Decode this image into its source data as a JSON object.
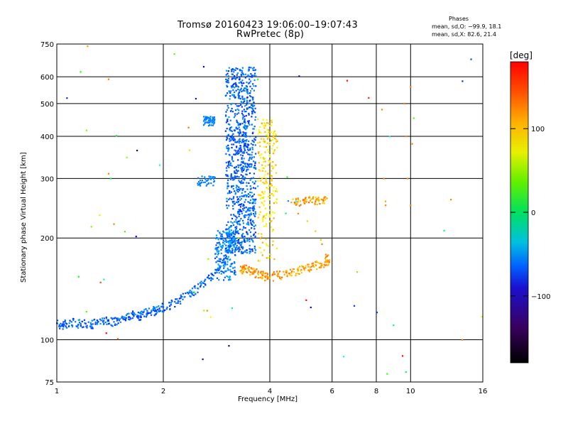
{
  "header": {
    "title": "Tromsø 20160423 19:06:00–19:07:43",
    "subtitle": "RwPretec (8p)"
  },
  "phases": {
    "heading": "Phases",
    "line_o": "mean, sd,O: −99.9, 18.1",
    "line_x": "mean, sd,X:  82.6, 21.4"
  },
  "colorbar": {
    "unit": "[deg]",
    "range": [
      -180,
      180
    ],
    "ticks": [
      {
        "v": 100,
        "label": "100"
      },
      {
        "v": 0,
        "label": "0"
      },
      {
        "v": -100,
        "label": "−100"
      }
    ]
  },
  "colors": {
    "o_mode": "#2a1ae0",
    "x_mode": "#d8e020",
    "noise": "#ff8a1e"
  },
  "chart_data": {
    "type": "scatter",
    "title": "Tromsø 20160423 19:06:00–19:07:43",
    "subtitle": "RwPretec (8p)",
    "xlabel": "Frequency [MHz]",
    "ylabel": "Stationary phase Virtual Height [km]",
    "x_scale": "log",
    "y_scale": "log",
    "xlim": [
      1,
      16
    ],
    "ylim": [
      75,
      750
    ],
    "x_ticks": [
      {
        "v": 1,
        "label": "1"
      },
      {
        "v": 2,
        "label": "2"
      },
      {
        "v": 4,
        "label": "4"
      },
      {
        "v": 6,
        "label": "6"
      },
      {
        "v": 8,
        "label": "8"
      },
      {
        "v": 10,
        "label": "10"
      },
      {
        "v": 16,
        "label": "16"
      }
    ],
    "y_ticks": [
      {
        "v": 75,
        "label": "75"
      },
      {
        "v": 100,
        "label": "100"
      },
      {
        "v": 200,
        "label": "200"
      },
      {
        "v": 300,
        "label": "300"
      },
      {
        "v": 400,
        "label": "400"
      },
      {
        "v": 500,
        "label": "500"
      },
      {
        "v": 600,
        "label": "600"
      },
      {
        "v": 750,
        "label": "750"
      }
    ],
    "grid": true,
    "color_by": "phase [deg]",
    "series": [
      {
        "points": [
          [
            1.0,
            112,
            -110
          ],
          [
            1.03,
            110,
            -110
          ],
          [
            1.06,
            112,
            -110
          ],
          [
            1.1,
            113,
            -110
          ],
          [
            1.15,
            111,
            -110
          ],
          [
            1.2,
            112,
            -110
          ],
          [
            1.25,
            111,
            -110
          ],
          [
            1.3,
            112,
            -110
          ],
          [
            1.35,
            113,
            -110
          ],
          [
            1.4,
            114,
            -110
          ],
          [
            1.45,
            113,
            -110
          ],
          [
            1.5,
            114,
            -110
          ],
          [
            1.55,
            115,
            -110
          ],
          [
            1.6,
            117,
            -110
          ],
          [
            1.65,
            118,
            -110
          ],
          [
            1.7,
            117,
            -110
          ],
          [
            1.75,
            119,
            -110
          ],
          [
            1.8,
            120,
            -110
          ],
          [
            1.85,
            121,
            -110
          ],
          [
            1.9,
            122,
            -110
          ],
          [
            1.95,
            124,
            -110
          ],
          [
            2.0,
            125,
            -110
          ],
          [
            2.1,
            127,
            -110
          ],
          [
            2.2,
            130,
            -110
          ],
          [
            2.3,
            134,
            -110
          ],
          [
            2.4,
            138,
            -110
          ],
          [
            2.5,
            142,
            -110
          ],
          [
            2.6,
            147,
            -110
          ],
          [
            2.7,
            152,
            -110
          ],
          [
            2.8,
            158,
            -110
          ],
          [
            2.9,
            165,
            -110
          ],
          [
            3.0,
            175,
            -110
          ],
          [
            3.1,
            190,
            -110
          ],
          [
            3.2,
            210,
            -110
          ],
          [
            3.3,
            240,
            -110
          ],
          [
            3.35,
            300,
            -110
          ],
          [
            3.4,
            400,
            -110
          ],
          [
            3.45,
            520,
            -110
          ],
          [
            3.5,
            640,
            -110
          ]
        ]
      },
      {
        "points": [
          [
            3.3,
            160,
            130
          ],
          [
            3.35,
            162,
            130
          ],
          [
            3.4,
            163,
            130
          ],
          [
            3.5,
            160,
            130
          ],
          [
            3.6,
            158,
            130
          ],
          [
            3.7,
            157,
            130
          ],
          [
            3.8,
            156,
            130
          ],
          [
            3.9,
            154,
            130
          ],
          [
            4.0,
            153,
            130
          ],
          [
            4.2,
            155,
            130
          ],
          [
            4.4,
            156,
            130
          ],
          [
            4.6,
            158,
            130
          ],
          [
            4.8,
            160,
            130
          ],
          [
            5.0,
            162,
            130
          ],
          [
            5.2,
            164,
            130
          ],
          [
            5.4,
            166,
            130
          ],
          [
            5.6,
            168,
            130
          ],
          [
            5.8,
            170,
            130
          ],
          [
            5.9,
            172,
            130
          ],
          [
            4.6,
            255,
            130
          ],
          [
            4.8,
            256,
            130
          ],
          [
            5.0,
            257,
            130
          ],
          [
            5.2,
            258,
            130
          ],
          [
            5.4,
            259,
            130
          ],
          [
            5.6,
            260,
            130
          ],
          [
            5.8,
            262,
            130
          ]
        ]
      },
      {
        "points": [
          [
            1.4,
            590,
            140
          ],
          [
            1.4,
            310,
            140
          ],
          [
            1.45,
            220,
            140
          ],
          [
            8.3,
            480,
            140
          ],
          [
            8.4,
            300,
            140
          ],
          [
            8.5,
            250,
            140
          ],
          [
            9.6,
            500,
            140
          ],
          [
            9.7,
            400,
            140
          ],
          [
            9.8,
            300,
            140
          ],
          [
            10.0,
            560,
            140
          ],
          [
            10.1,
            380,
            140
          ],
          [
            10.0,
            250,
            140
          ],
          [
            13.0,
            260,
            140
          ],
          [
            14.0,
            100,
            140
          ]
        ]
      }
    ]
  }
}
